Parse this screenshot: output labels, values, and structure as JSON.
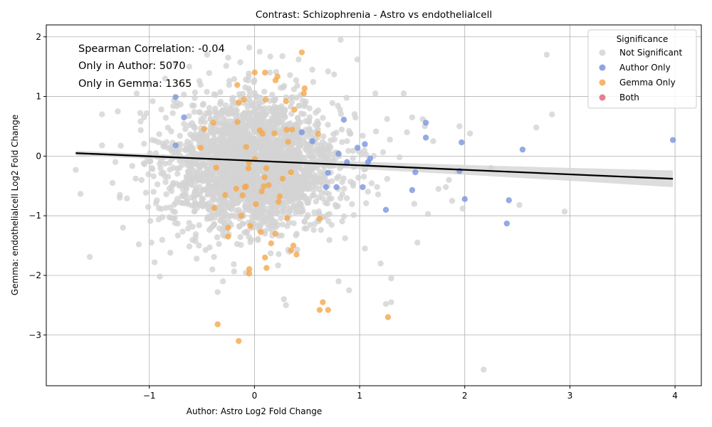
{
  "chart_data": {
    "type": "scatter",
    "title": "Contrast: Schizophrenia - Astro vs endothelialcell",
    "xlabel": "Author: Astro Log2 Fold Change",
    "ylabel": "Gemma: endothelialcell Log2 Fold Change",
    "xlim": [
      -1.98,
      4.25
    ],
    "ylim": [
      -3.85,
      2.2
    ],
    "xticks": [
      -1,
      0,
      1,
      2,
      3,
      4
    ],
    "yticks": [
      -3,
      -2,
      -1,
      0,
      1,
      2
    ],
    "xtick_labels": [
      "−1",
      "0",
      "1",
      "2",
      "3",
      "4"
    ],
    "ytick_labels": [
      "−3",
      "−2",
      "−1",
      "0",
      "1",
      "2"
    ],
    "grid": true,
    "annotations": [
      "Spearman Correlation: -0.04",
      "Only in Author: 5070",
      "Only in Gemma: 1365"
    ],
    "legend": {
      "title": "Significance",
      "placement": "top-right",
      "entries": [
        {
          "label": "Not Significant",
          "color": "#d3d3d3"
        },
        {
          "label": "Author Only",
          "color": "#7b93e0"
        },
        {
          "label": "Gemma Only",
          "color": "#f5a84c"
        },
        {
          "label": "Both",
          "color": "#e06a80"
        }
      ]
    },
    "regression": {
      "x": [
        -1.7,
        3.98
      ],
      "y": [
        0.05,
        -0.38
      ],
      "ci_half_width_ends": [
        0.04,
        0.14
      ],
      "color": "#000000",
      "band_color": "#d9d9d9"
    },
    "series": [
      {
        "name": "Not Significant",
        "color": "#d3d3d3",
        "cloud": {
          "center": [
            0.0,
            -0.15
          ],
          "sd": [
            0.4,
            0.55
          ],
          "count": 2600
        },
        "points": [
          [
            -1.7,
            -0.23
          ],
          [
            -1.45,
            0.18
          ],
          [
            -1.45,
            0.7
          ],
          [
            -1.3,
            0.75
          ],
          [
            -1.35,
            -0.45
          ],
          [
            -1.28,
            -0.65
          ],
          [
            -1.25,
            -1.2
          ],
          [
            -1.1,
            -1.48
          ],
          [
            -1.12,
            1.05
          ],
          [
            -1.05,
            0.65
          ],
          [
            -0.98,
            -1.45
          ],
          [
            -0.95,
            -1.78
          ],
          [
            -0.9,
            -2.02
          ],
          [
            -0.85,
            1.3
          ],
          [
            -0.8,
            -1.62
          ],
          [
            -0.75,
            1.55
          ],
          [
            -0.62,
            1.5
          ],
          [
            -0.55,
            -1.72
          ],
          [
            -0.45,
            1.7
          ],
          [
            -0.4,
            -1.9
          ],
          [
            -0.35,
            -2.28
          ],
          [
            -0.3,
            -2.1
          ],
          [
            -0.25,
            1.65
          ],
          [
            -0.05,
            1.82
          ],
          [
            0.05,
            1.75
          ],
          [
            0.15,
            1.67
          ],
          [
            0.28,
            -2.4
          ],
          [
            0.3,
            -2.5
          ],
          [
            0.42,
            1.62
          ],
          [
            0.55,
            1.45
          ],
          [
            0.7,
            1.42
          ],
          [
            0.8,
            -2.1
          ],
          [
            0.82,
            1.95
          ],
          [
            0.9,
            -2.25
          ],
          [
            0.98,
            1.62
          ],
          [
            1.05,
            -1.55
          ],
          [
            1.15,
            1.05
          ],
          [
            1.2,
            -1.8
          ],
          [
            1.25,
            -2.48
          ],
          [
            1.3,
            -2.45
          ],
          [
            1.3,
            -2.05
          ],
          [
            1.38,
            -0.02
          ],
          [
            1.42,
            1.05
          ],
          [
            1.45,
            0.4
          ],
          [
            1.5,
            0.65
          ],
          [
            1.52,
            -0.8
          ],
          [
            1.55,
            -1.45
          ],
          [
            1.6,
            0.62
          ],
          [
            1.62,
            0.5
          ],
          [
            1.65,
            -0.97
          ],
          [
            1.7,
            0.25
          ],
          [
            1.75,
            -0.55
          ],
          [
            1.82,
            -0.52
          ],
          [
            1.85,
            -0.4
          ],
          [
            1.88,
            -0.75
          ],
          [
            1.92,
            -0.25
          ],
          [
            1.95,
            0.5
          ],
          [
            1.98,
            -0.88
          ],
          [
            2.05,
            0.38
          ],
          [
            2.18,
            -3.58
          ],
          [
            2.25,
            -0.2
          ],
          [
            2.52,
            -0.82
          ],
          [
            2.68,
            0.48
          ],
          [
            2.78,
            1.7
          ],
          [
            2.83,
            0.7
          ],
          [
            2.95,
            -0.93
          ]
        ]
      },
      {
        "name": "Author Only",
        "color": "#7b93e0",
        "points": [
          [
            -0.75,
            0.99
          ],
          [
            -0.67,
            0.65
          ],
          [
            -0.75,
            0.18
          ],
          [
            0.45,
            0.4
          ],
          [
            0.55,
            0.25
          ],
          [
            0.68,
            -0.52
          ],
          [
            0.7,
            -0.28
          ],
          [
            0.78,
            -0.52
          ],
          [
            0.8,
            0.04
          ],
          [
            0.85,
            0.61
          ],
          [
            0.88,
            -0.1
          ],
          [
            0.98,
            0.14
          ],
          [
            1.03,
            -0.52
          ],
          [
            1.05,
            0.2
          ],
          [
            1.08,
            -0.1
          ],
          [
            1.1,
            -0.04
          ],
          [
            1.25,
            -0.9
          ],
          [
            1.5,
            -0.57
          ],
          [
            1.53,
            -0.27
          ],
          [
            1.63,
            0.31
          ],
          [
            1.63,
            0.56
          ],
          [
            1.95,
            -0.25
          ],
          [
            1.97,
            0.23
          ],
          [
            2.0,
            -0.72
          ],
          [
            2.4,
            -1.13
          ],
          [
            2.42,
            -0.74
          ],
          [
            2.55,
            0.11
          ],
          [
            3.98,
            0.27
          ]
        ]
      },
      {
        "name": "Gemma Only",
        "color": "#f5a84c",
        "cloud": {
          "center": [
            0.0,
            -0.2
          ],
          "sd": [
            0.25,
            0.75
          ],
          "count": 45
        },
        "points": [
          [
            0.45,
            1.74
          ],
          [
            0.1,
            1.4
          ],
          [
            0.2,
            1.27
          ],
          [
            -0.35,
            -2.82
          ],
          [
            -0.15,
            -3.1
          ],
          [
            0.62,
            -2.58
          ],
          [
            0.65,
            -2.45
          ],
          [
            0.7,
            -2.58
          ],
          [
            1.27,
            -2.7
          ],
          [
            0.35,
            -1.58
          ],
          [
            0.37,
            -1.5
          ],
          [
            0.4,
            -1.65
          ],
          [
            0.1,
            -1.7
          ],
          [
            -0.05,
            -1.97
          ],
          [
            0.2,
            -1.3
          ],
          [
            -0.25,
            -1.35
          ],
          [
            -0.25,
            -1.2
          ],
          [
            0.62,
            -1.05
          ],
          [
            0.3,
            0.92
          ],
          [
            0.38,
            0.78
          ],
          [
            -0.1,
            0.95
          ],
          [
            -0.15,
            0.9
          ]
        ]
      },
      {
        "name": "Both",
        "color": "#e06a80",
        "points": []
      }
    ]
  }
}
